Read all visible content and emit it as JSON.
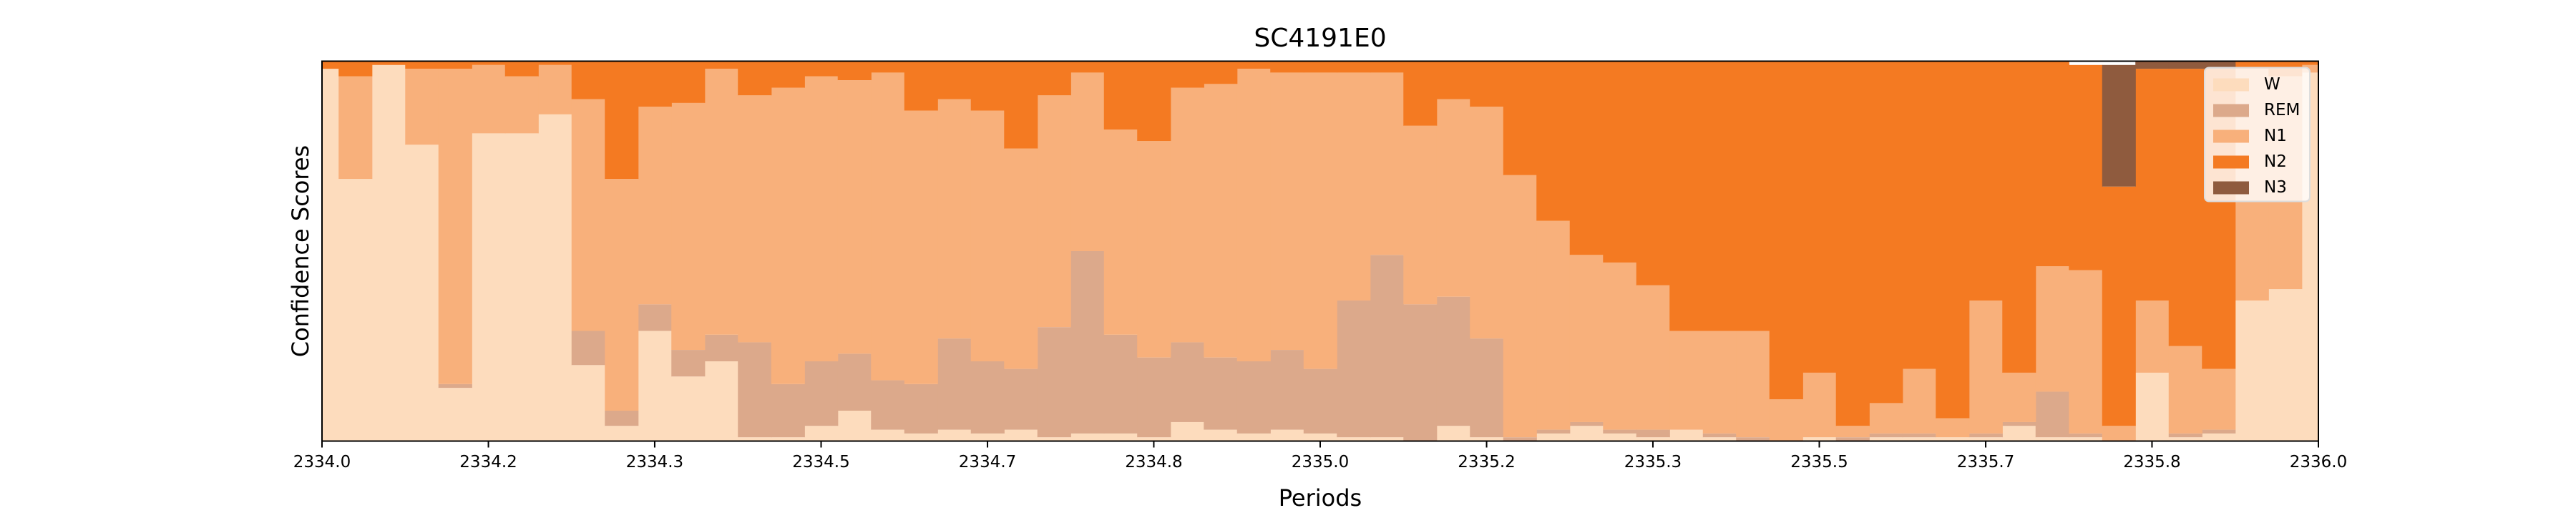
{
  "chart_data": {
    "type": "stacked_step_area",
    "title": "SC4191E0",
    "x_label": "Periods",
    "y_label": "Confidence Scores",
    "x": [
      2334,
      2334.0333,
      2334.0667,
      2334.1,
      2334.1333,
      2334.1667,
      2334.2,
      2334.2333,
      2334.2667,
      2334.3,
      2334.3333,
      2334.3667,
      2334.4,
      2334.4333,
      2334.4667,
      2334.5,
      2334.5333,
      2334.5667,
      2334.6,
      2334.6333,
      2334.6667,
      2334.7,
      2334.7333,
      2334.7667,
      2334.8,
      2334.8333,
      2334.8667,
      2334.9,
      2334.9333,
      2334.9667,
      2335,
      2335.0333,
      2335.0667,
      2335.1,
      2335.1333,
      2335.1667,
      2335.2,
      2335.2333,
      2335.2667,
      2335.3,
      2335.3333,
      2335.3667,
      2335.4,
      2335.4333,
      2335.4667,
      2335.5,
      2335.5333,
      2335.5667,
      2335.6,
      2335.6333,
      2335.6667,
      2335.7,
      2335.7333,
      2335.7667,
      2335.8,
      2335.8333,
      2335.8667,
      2335.9,
      2335.9333,
      2335.9667,
      2336
    ],
    "series": [
      {
        "name": "W",
        "color": "#fddcbd",
        "values": [
          0.98,
          0.69,
          0.99,
          0.78,
          0.14,
          0.81,
          0.81,
          0.86,
          0.2,
          0.04,
          0.29,
          0.17,
          0.21,
          0.01,
          0.01,
          0.04,
          0.08,
          0.03,
          0.02,
          0.03,
          0.02,
          0.03,
          0.01,
          0.02,
          0.02,
          0.01,
          0.05,
          0.03,
          0.02,
          0.03,
          0.02,
          0.01,
          0.01,
          0,
          0.04,
          0.01,
          0,
          0.02,
          0.04,
          0.02,
          0.01,
          0.03,
          0.01,
          0,
          0,
          0.01,
          0,
          0.01,
          0.01,
          0.01,
          0.01,
          0.04,
          0.01,
          0.01,
          0,
          0.18,
          0.01,
          0.02,
          0.37,
          0.4,
          0.97
        ]
      },
      {
        "name": "REM",
        "color": "#dca98b",
        "values": [
          0,
          0,
          0,
          0,
          0.01,
          0,
          0,
          0,
          0.09,
          0.04,
          0.07,
          0.07,
          0.07,
          0.25,
          0.14,
          0.17,
          0.15,
          0.13,
          0.13,
          0.24,
          0.19,
          0.16,
          0.29,
          0.48,
          0.26,
          0.21,
          0.21,
          0.19,
          0.19,
          0.21,
          0.17,
          0.36,
          0.48,
          0.36,
          0.34,
          0.26,
          0.01,
          0.01,
          0.01,
          0.01,
          0.02,
          0,
          0.01,
          0.01,
          0,
          0,
          0.01,
          0.01,
          0.01,
          0,
          0.01,
          0.01,
          0.12,
          0.01,
          0,
          0,
          0.01,
          0.01,
          0,
          0,
          0
        ]
      },
      {
        "name": "N1",
        "color": "#f8b07b",
        "values": [
          0,
          0.27,
          0,
          0.2,
          0.83,
          0.18,
          0.15,
          0.13,
          0.61,
          0.61,
          0.52,
          0.65,
          0.7,
          0.65,
          0.78,
          0.75,
          0.72,
          0.81,
          0.72,
          0.63,
          0.66,
          0.58,
          0.61,
          0.47,
          0.54,
          0.57,
          0.67,
          0.72,
          0.77,
          0.73,
          0.78,
          0.6,
          0.48,
          0.47,
          0.52,
          0.61,
          0.69,
          0.55,
          0.44,
          0.44,
          0.38,
          0.26,
          0.27,
          0.28,
          0.11,
          0.17,
          0.03,
          0.08,
          0.17,
          0.05,
          0.35,
          0.13,
          0.33,
          0.43,
          0.04,
          0.19,
          0.23,
          0.16,
          0.61,
          0.56,
          0.02
        ]
      },
      {
        "name": "N2",
        "color": "#f47a22",
        "values": [
          0.02,
          0.04,
          0.01,
          0.02,
          0.03,
          0.01,
          0.04,
          0.01,
          0.1,
          0.31,
          0.12,
          0.11,
          0.02,
          0.09,
          0.07,
          0.04,
          0.05,
          0.03,
          0.13,
          0.1,
          0.13,
          0.23,
          0.09,
          0.03,
          0.18,
          0.21,
          0.07,
          0.06,
          0.02,
          0.03,
          0.03,
          0.03,
          0.03,
          0.17,
          0.1,
          0.12,
          0.3,
          0.42,
          0.51,
          0.53,
          0.59,
          0.71,
          0.71,
          0.71,
          0.89,
          0.82,
          0.96,
          0.9,
          0.81,
          0.94,
          0.63,
          0.82,
          0.54,
          0.54,
          0.63,
          0.61,
          0.73,
          0.79,
          0.02,
          0.04,
          0.01
        ]
      },
      {
        "name": "N3",
        "color": "#8f5b3e",
        "values": [
          0,
          0,
          0,
          0,
          0,
          0,
          0,
          0,
          0,
          0,
          0,
          0,
          0,
          0,
          0,
          0,
          0,
          0,
          0,
          0,
          0,
          0,
          0,
          0,
          0,
          0,
          0,
          0,
          0,
          0,
          0,
          0,
          0,
          0,
          0,
          0,
          0,
          0,
          0,
          0,
          0,
          0,
          0,
          0,
          0,
          0,
          0,
          0,
          0,
          0,
          0,
          0,
          0,
          0,
          0.32,
          0.02,
          0.02,
          0.02,
          0,
          0,
          0
        ]
      }
    ],
    "xlim": [
      2334,
      2336
    ],
    "ylim": [
      0,
      1
    ],
    "xticks": [
      {
        "value": 2334,
        "label": "2334.0"
      },
      {
        "value": 2334.1667,
        "label": "2334.2"
      },
      {
        "value": 2334.3333,
        "label": "2334.3"
      },
      2334.5,
      {
        "value": 2334.6667,
        "label": "2334.7"
      },
      {
        "value": 2334.8333,
        "label": "2334.8"
      },
      {
        "value": 2335,
        "label": "2335.0"
      },
      {
        "value": 2335.1667,
        "label": "2335.2"
      },
      {
        "value": 2335.3333,
        "label": "2335.3"
      },
      2335.5,
      {
        "value": 2335.6667,
        "label": "2335.7"
      },
      {
        "value": 2335.8333,
        "label": "2335.8"
      },
      {
        "value": 2336,
        "label": "2336.0"
      }
    ],
    "legend": "upper right"
  }
}
